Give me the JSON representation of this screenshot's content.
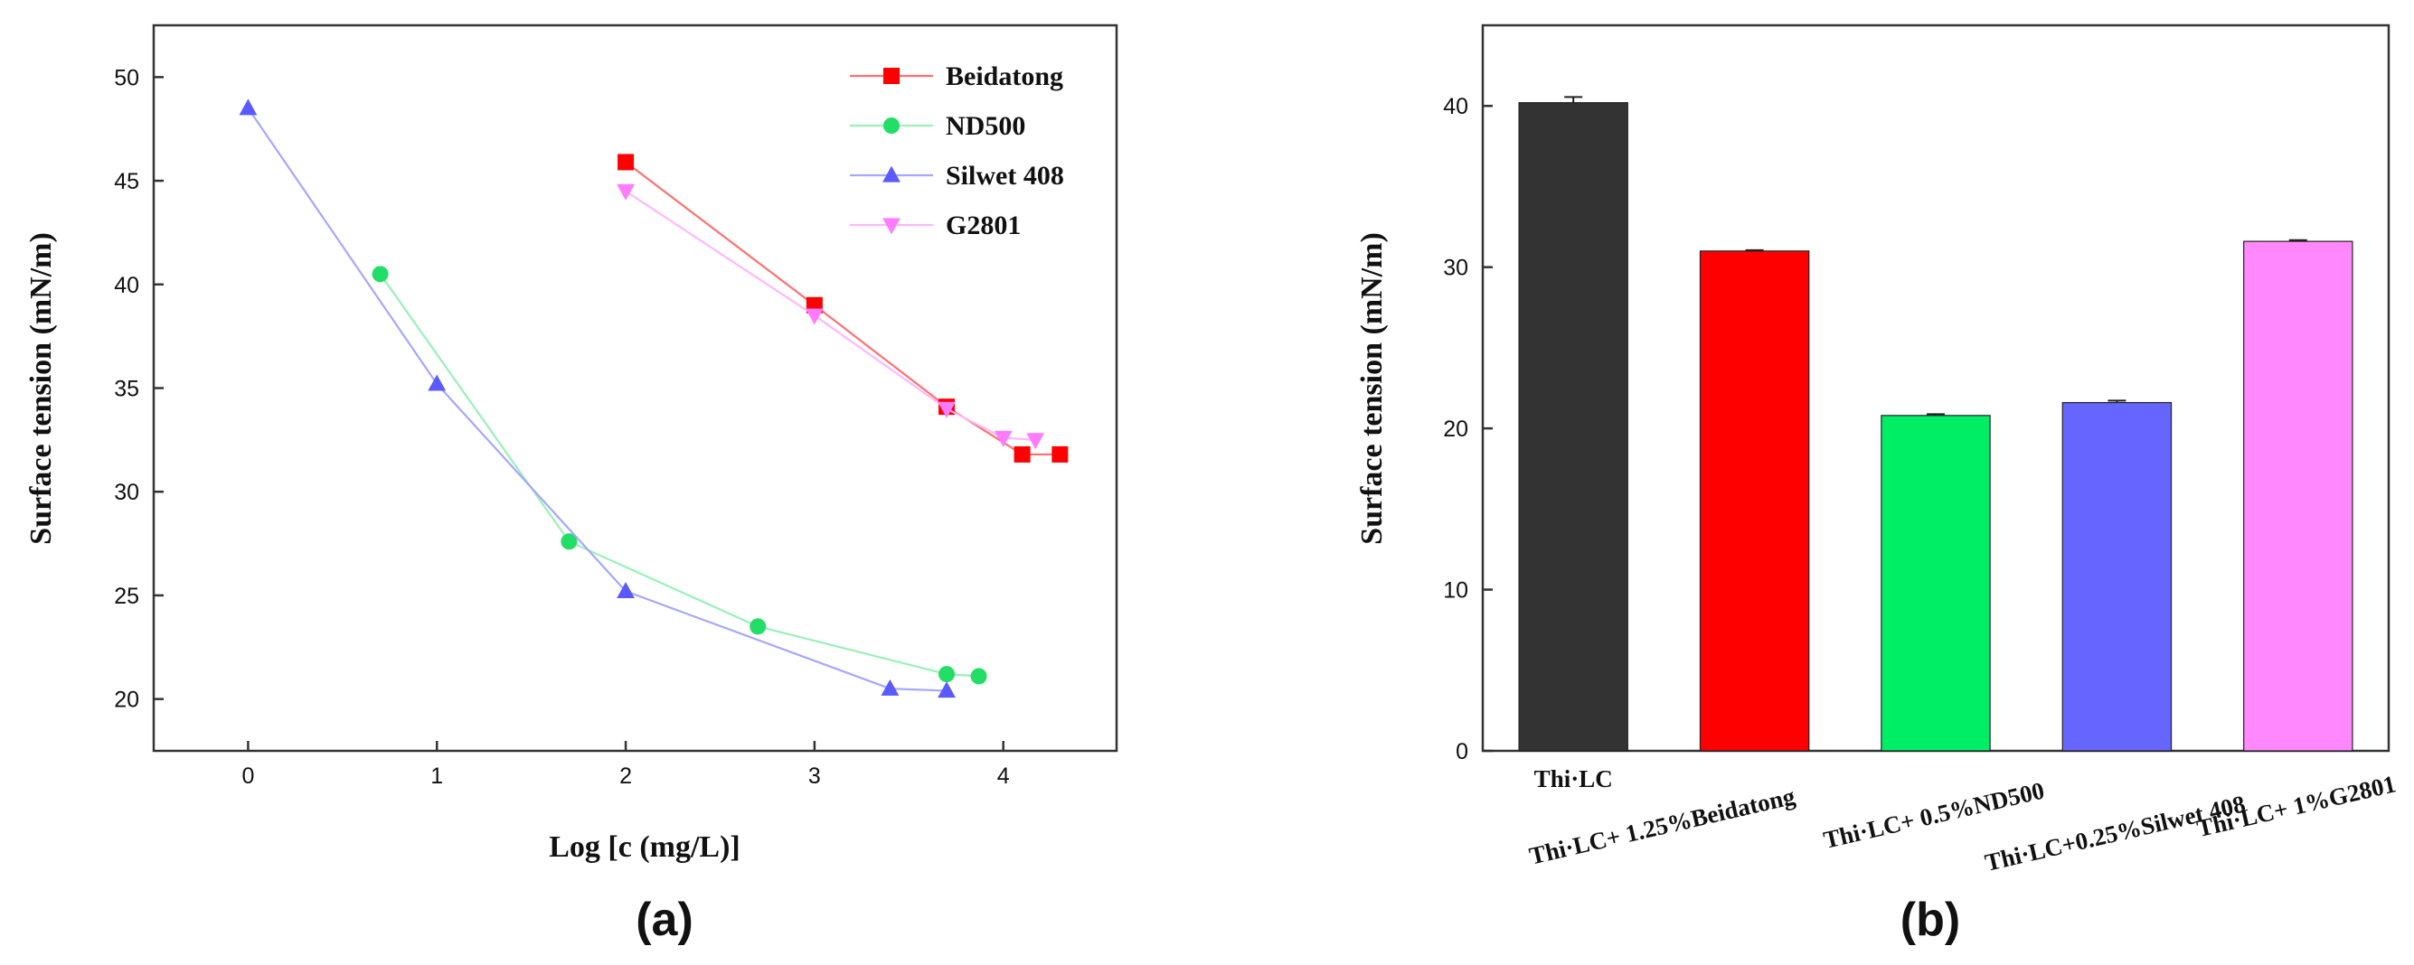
{
  "chart_data": [
    {
      "panel": "(a)",
      "type": "line",
      "xlabel": "Log [c (mg/L)]",
      "ylabel": "Surface tension (mN/m)",
      "xlim": [
        -0.5,
        4.6
      ],
      "ylim": [
        17.5,
        52.5
      ],
      "xticks": [
        0,
        1,
        2,
        3,
        4
      ],
      "yticks": [
        20,
        25,
        30,
        35,
        40,
        45,
        50
      ],
      "legend_position": "top-right",
      "series": [
        {
          "name": "Beidatong",
          "marker": "square",
          "color": "#ff0000",
          "line_color": "#ff7070",
          "x": [
            2.0,
            3.0,
            3.7,
            4.1,
            4.3
          ],
          "y": [
            45.9,
            39.0,
            34.1,
            31.8,
            31.8
          ]
        },
        {
          "name": "ND500",
          "marker": "circle",
          "color": "#22dd66",
          "line_color": "#9af0b8",
          "x": [
            0.7,
            1.7,
            2.7,
            3.7,
            3.87
          ],
          "y": [
            40.5,
            27.6,
            23.5,
            21.2,
            21.1
          ]
        },
        {
          "name": "Silwet 408",
          "marker": "triangle-up",
          "color": "#5a5aff",
          "line_color": "#a6a6ff",
          "x": [
            0.0,
            1.0,
            2.0,
            3.4,
            3.7
          ],
          "y": [
            48.5,
            35.2,
            25.2,
            20.5,
            20.4
          ]
        },
        {
          "name": "G2801",
          "marker": "triangle-down",
          "color": "#ff7bff",
          "line_color": "#ffb8ff",
          "x": [
            2.0,
            3.0,
            3.7,
            4.0,
            4.17
          ],
          "y": [
            44.5,
            38.5,
            34.0,
            32.6,
            32.5
          ]
        }
      ]
    },
    {
      "panel": "(b)",
      "type": "bar",
      "ylabel": "Surface tension (mN/m)",
      "ylim": [
        0,
        45
      ],
      "yticks": [
        0,
        10,
        20,
        30,
        40
      ],
      "categories": [
        "Thi·LC",
        "Thi·LC+ 1.25%Beidatong",
        "Thi·LC+ 0.5%ND500",
        "Thi·LC+0.25%Silwet 408",
        "Thi·LC+ 1%G2801"
      ],
      "values": [
        40.2,
        31.0,
        20.8,
        21.6,
        31.6
      ],
      "errors": [
        0.35,
        0.05,
        0.08,
        0.12,
        0.08
      ],
      "colors": [
        "#333333",
        "#ff0000",
        "#00ee66",
        "#6666ff",
        "#ff88ff"
      ]
    }
  ]
}
